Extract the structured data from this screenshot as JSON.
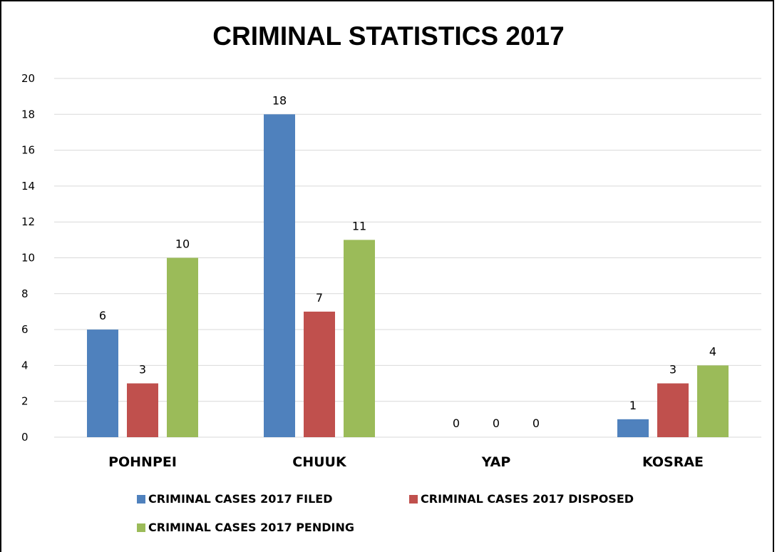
{
  "chart_data": {
    "type": "bar",
    "title": "CRIMINAL STATISTICS 2017",
    "xlabel": "",
    "ylabel": "",
    "categories": [
      "POHNPEI",
      "CHUUK",
      "YAP",
      "KOSRAE"
    ],
    "series": [
      {
        "name": "CRIMINAL CASES 2017 FILED",
        "color": "#4F81BD",
        "values": [
          6,
          18,
          0,
          1
        ]
      },
      {
        "name": "CRIMINAL CASES 2017 DISPOSED",
        "color": "#C0504D",
        "values": [
          3,
          7,
          0,
          3
        ]
      },
      {
        "name": "CRIMINAL CASES 2017 PENDING",
        "color": "#9BBB59",
        "values": [
          10,
          11,
          0,
          4
        ]
      }
    ],
    "ylim": [
      0,
      20
    ],
    "yticks": [
      "0",
      "2",
      "4",
      "6",
      "8",
      "10",
      "12",
      "14",
      "16",
      "18",
      "20"
    ],
    "grid": true,
    "gridline_color": "#d9d9d9",
    "data_labels": true,
    "legend_position": "bottom"
  }
}
